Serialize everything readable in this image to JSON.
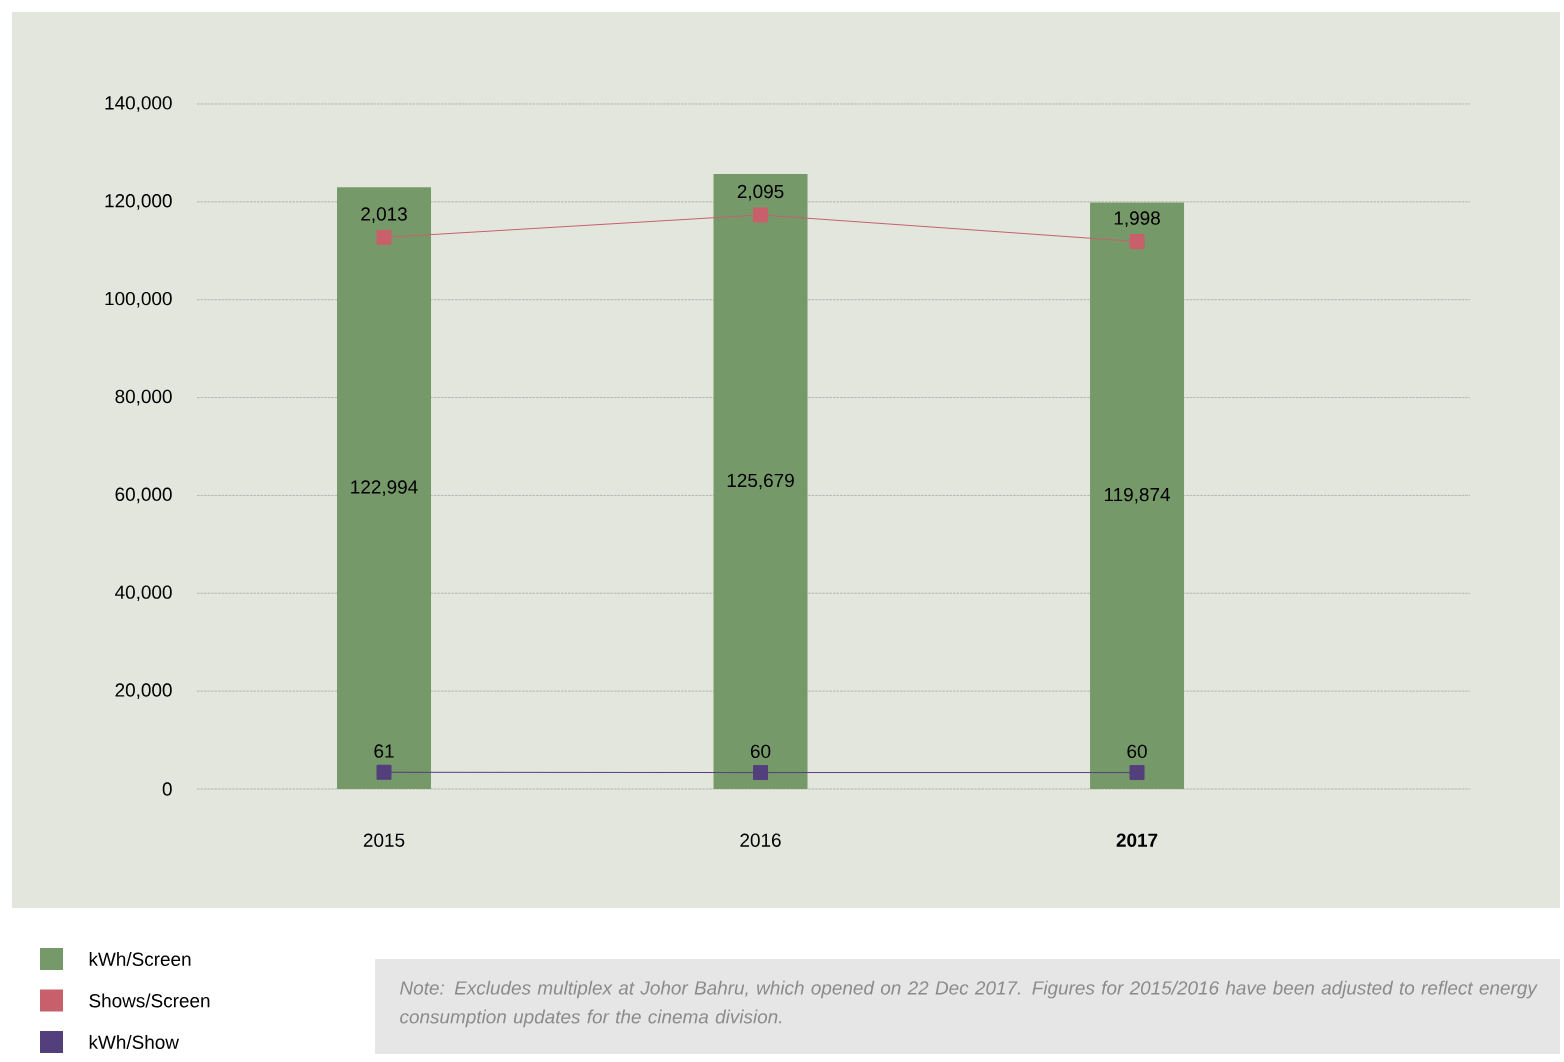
{
  "chart_data": {
    "type": "bar",
    "categories": [
      "2015",
      "2016",
      "**2017**"
    ],
    "series": [
      {
        "name": "kWh/Screen",
        "color": "#76996a",
        "values": [
          122994,
          125679,
          119874
        ],
        "value_labels": [
          "122,994",
          "125,679",
          "119,874"
        ]
      },
      {
        "name": "Shows/Screen",
        "type": "line",
        "axis": "y2",
        "color": "#c7606b",
        "values": [
          2013,
          2095,
          1998
        ],
        "value_labels": [
          "2,013",
          "2,095",
          "1,998"
        ]
      },
      {
        "name": "kWh/Show",
        "type": "line",
        "axis": "y2",
        "color": "#523f7c",
        "values": [
          61,
          60,
          60
        ],
        "value_labels": [
          "61",
          "60",
          "60"
        ]
      }
    ],
    "ylim": [
      0,
      140000
    ],
    "yticks": [
      {
        "value": 0,
        "label": "0"
      },
      {
        "value": 20000,
        "label": "20,000"
      },
      {
        "value": 40000,
        "label": "40,000"
      },
      {
        "value": 60000,
        "label": "60,000"
      },
      {
        "value": 80000,
        "label": "80,000"
      },
      {
        "value": 100000,
        "label": "100,000"
      },
      {
        "value": 120000,
        "label": "120,000"
      },
      {
        "value": 140000,
        "label": "140,000"
      }
    ],
    "y2lim": [
      0,
      2500
    ],
    "grid": "y",
    "marker": "square",
    "legend": "bottom left",
    "annotations": [
      "*Note: Excludes multiplex at Johor Bahru, which opened on 22 Dec 2017. Figures for 2015/2016 have been adjusted to reflect energy consumption updates for the cinema division.*"
    ]
  }
}
